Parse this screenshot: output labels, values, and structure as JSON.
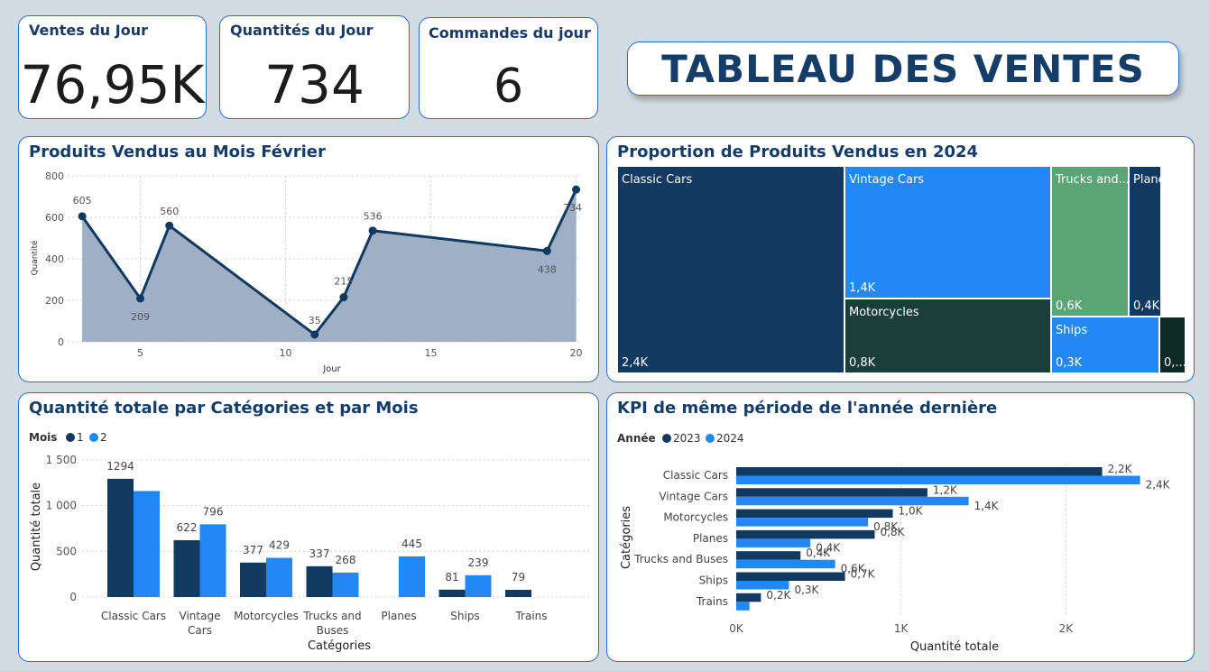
{
  "kpis": [
    {
      "title": "Ventes du Jour",
      "value": "76,95K"
    },
    {
      "title": "Quantités du Jour",
      "value": "734"
    },
    {
      "title": "Commandes du jour",
      "value": "6"
    }
  ],
  "banner_title": "TABLEAU DES VENTES",
  "colors": {
    "dark": "#12395f",
    "light": "#2288f5",
    "green": "#5aa574",
    "darkgreen": "#1a3f3a",
    "area": "#9aabc3"
  },
  "line_chart": {
    "title": "Produits Vendus au Mois Février",
    "xlabel": "Jour",
    "ylabel": "Quantité",
    "x_ticks": [
      "5",
      "10",
      "15",
      "20"
    ],
    "y_ticks": [
      "0",
      "200",
      "400",
      "600",
      "800"
    ],
    "chart_data": {
      "type": "area",
      "x": [
        3,
        5,
        6,
        11,
        12,
        13,
        19,
        20
      ],
      "y": [
        605,
        209,
        560,
        35,
        215,
        536,
        438,
        734
      ],
      "labels": [
        "605",
        "209",
        "560",
        "35",
        "215",
        "536",
        "438",
        "734"
      ],
      "xlim": [
        2.5,
        20.2
      ],
      "ylim": [
        0,
        800
      ]
    }
  },
  "treemap": {
    "title": "Proportion de Produits Vendus en 2024",
    "chart_data": {
      "type": "treemap",
      "items": [
        {
          "name": "Classic Cars",
          "label": "2,4K",
          "value": 2.4
        },
        {
          "name": "Vintage Cars",
          "label": "1,4K",
          "value": 1.4
        },
        {
          "name": "Motorcycles",
          "label": "0,8K",
          "value": 0.8
        },
        {
          "name": "Trucks and...",
          "label": "0,6K",
          "value": 0.6
        },
        {
          "name": "Planes",
          "label": "0,4K",
          "value": 0.4
        },
        {
          "name": "Ships",
          "label": "0,3K",
          "value": 0.3
        },
        {
          "name": "",
          "label": "0,...",
          "value": 0.1
        }
      ]
    }
  },
  "bar_chart": {
    "title": "Quantité totale par Catégories et par Mois",
    "legend_title": "Mois",
    "xlabel": "Catégories",
    "ylabel": "Quantité totale",
    "y_ticks": [
      "0",
      "500",
      "1 000",
      "1 500"
    ],
    "category_labels": [
      [
        "Classic Cars"
      ],
      [
        "Vintage",
        "Cars"
      ],
      [
        "Motorcycles"
      ],
      [
        "Trucks and",
        "Buses"
      ],
      [
        "Planes"
      ],
      [
        "Ships"
      ],
      [
        "Trains"
      ]
    ],
    "chart_data": {
      "type": "bar",
      "categories": [
        "Classic Cars",
        "Vintage Cars",
        "Motorcycles",
        "Trucks and Buses",
        "Planes",
        "Ships",
        "Trains"
      ],
      "series": [
        {
          "name": "1",
          "values": [
            1294,
            622,
            377,
            337,
            null,
            81,
            79
          ],
          "labels": [
            "1294",
            "622",
            "377",
            "337",
            "",
            "81",
            "79"
          ]
        },
        {
          "name": "2",
          "values": [
            1160,
            796,
            429,
            268,
            445,
            239,
            null
          ],
          "labels": [
            "",
            "796",
            "429",
            "268",
            "445",
            "239",
            ""
          ]
        }
      ],
      "ylim": [
        0,
        1500
      ]
    }
  },
  "hbar_chart": {
    "title": "KPI de même période de l'année dernière",
    "legend_title": "Année",
    "xlabel": "Quantité totale",
    "ylabel": "Catégories",
    "x_ticks": [
      "0K",
      "1K",
      "2K"
    ],
    "chart_data": {
      "type": "bar",
      "orientation": "horizontal",
      "categories": [
        "Classic Cars",
        "Vintage Cars",
        "Motorcycles",
        "Planes",
        "Trucks and Buses",
        "Ships",
        "Trains"
      ],
      "series": [
        {
          "name": "2023",
          "values": [
            2.22,
            1.16,
            0.95,
            0.84,
            0.39,
            0.66,
            0.15
          ],
          "labels": [
            "2,2K",
            "1,2K",
            "1,0K",
            "0,8K",
            "0,4K",
            "0,7K",
            "0,2K"
          ]
        },
        {
          "name": "2024",
          "values": [
            2.45,
            1.41,
            0.8,
            0.45,
            0.6,
            0.32,
            0.08
          ],
          "labels": [
            "2,4K",
            "1,4K",
            "0,8K",
            "0,4K",
            "0,6K",
            "0,3K",
            ""
          ]
        }
      ],
      "xlim": [
        0,
        2.6
      ]
    }
  }
}
